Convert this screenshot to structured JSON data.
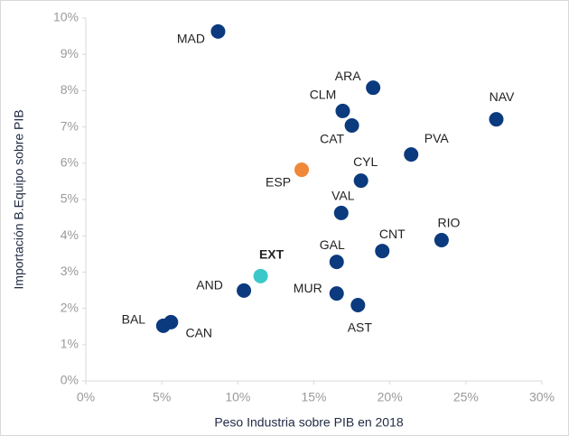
{
  "chart_data": {
    "type": "scatter",
    "xlabel": "Peso Industria sobre PIB en 2018",
    "ylabel": "Importación B.Equipo sobre PIB",
    "xlim": [
      0,
      30
    ],
    "ylim": [
      0,
      10
    ],
    "xticks": [
      {
        "value": 0,
        "label": "0%"
      },
      {
        "value": 5,
        "label": "5%"
      },
      {
        "value": 10,
        "label": "10%"
      },
      {
        "value": 15,
        "label": "15%"
      },
      {
        "value": 20,
        "label": "20%"
      },
      {
        "value": 25,
        "label": "25%"
      },
      {
        "value": 30,
        "label": "30%"
      }
    ],
    "yticks": [
      {
        "value": 0,
        "label": "0%"
      },
      {
        "value": 1,
        "label": "1%"
      },
      {
        "value": 2,
        "label": "2%"
      },
      {
        "value": 3,
        "label": "3%"
      },
      {
        "value": 4,
        "label": "4%"
      },
      {
        "value": 5,
        "label": "5%"
      },
      {
        "value": 6,
        "label": "6%"
      },
      {
        "value": 7,
        "label": "7%"
      },
      {
        "value": 8,
        "label": "8%"
      },
      {
        "value": 9,
        "label": "9%"
      },
      {
        "value": 10,
        "label": "10%"
      }
    ],
    "points": [
      {
        "label": "MAD",
        "x": 8.7,
        "y": 9.63,
        "color": "#0b3a7e"
      },
      {
        "label": "ARA",
        "x": 18.9,
        "y": 8.08,
        "color": "#0b3a7e"
      },
      {
        "label": "CLM",
        "x": 16.9,
        "y": 7.44,
        "color": "#0b3a7e"
      },
      {
        "label": "CAT",
        "x": 17.5,
        "y": 7.04,
        "color": "#0b3a7e"
      },
      {
        "label": "NAV",
        "x": 27.0,
        "y": 7.21,
        "color": "#0b3a7e"
      },
      {
        "label": "PVA",
        "x": 21.4,
        "y": 6.24,
        "color": "#0b3a7e"
      },
      {
        "label": "ESP",
        "x": 14.2,
        "y": 5.82,
        "color": "#f0883a"
      },
      {
        "label": "CYL",
        "x": 18.1,
        "y": 5.52,
        "color": "#0b3a7e"
      },
      {
        "label": "VAL",
        "x": 16.8,
        "y": 4.63,
        "color": "#0b3a7e"
      },
      {
        "label": "RIO",
        "x": 23.4,
        "y": 3.88,
        "color": "#0b3a7e"
      },
      {
        "label": "CNT",
        "x": 19.5,
        "y": 3.58,
        "color": "#0b3a7e"
      },
      {
        "label": "GAL",
        "x": 16.5,
        "y": 3.28,
        "color": "#0b3a7e"
      },
      {
        "label": "EXT",
        "x": 11.5,
        "y": 2.89,
        "color": "#3cc8c8"
      },
      {
        "label": "AND",
        "x": 10.4,
        "y": 2.49,
        "color": "#0b3a7e"
      },
      {
        "label": "MUR",
        "x": 16.5,
        "y": 2.41,
        "color": "#0b3a7e"
      },
      {
        "label": "AST",
        "x": 17.9,
        "y": 2.09,
        "color": "#0b3a7e"
      },
      {
        "label": "BAL",
        "x": 5.1,
        "y": 1.52,
        "color": "#0b3a7e"
      },
      {
        "label": "CAN",
        "x": 5.6,
        "y": 1.62,
        "color": "#0b3a7e"
      }
    ]
  }
}
